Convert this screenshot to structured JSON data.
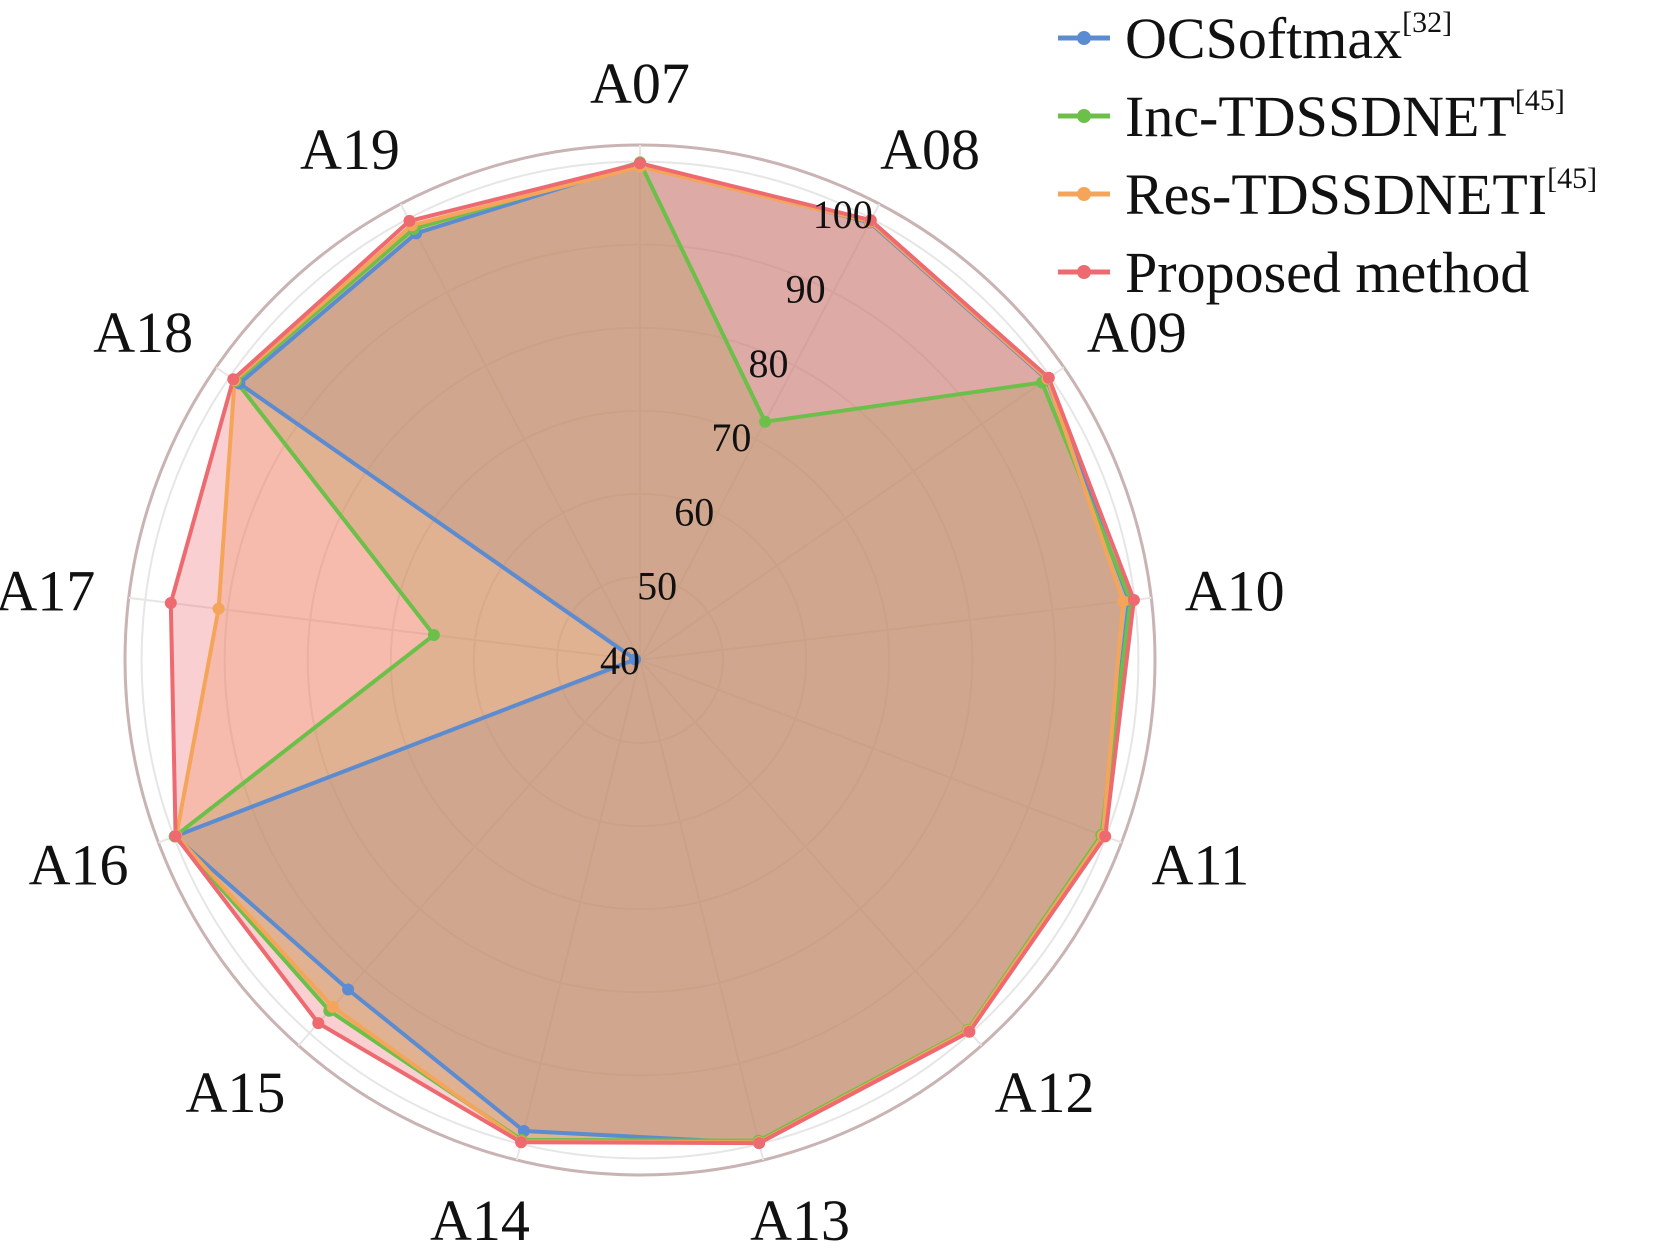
{
  "chart_data": {
    "type": "radar",
    "axes": [
      "A07",
      "A08",
      "A09",
      "A10",
      "A11",
      "A12",
      "A13",
      "A14",
      "A15",
      "A16",
      "A17",
      "A18",
      "A19"
    ],
    "rlim": [
      40,
      102
    ],
    "ticks": [
      40,
      50,
      60,
      70,
      80,
      90,
      100
    ],
    "grid": true,
    "legend_position": "top-right",
    "series": [
      {
        "name": "OCSoftmax",
        "ref": "[32]",
        "color": "#5b8bd0",
        "values": [
          99.8,
          99.5,
          99.5,
          99.3,
          99.5,
          99.6,
          99.9,
          98.4,
          93.0,
          99.9,
          40.6,
          98.6,
          98.0
        ]
      },
      {
        "name": "Inc-TDSSDNET",
        "ref": "[45]",
        "color": "#6cc04a",
        "values": [
          99.9,
          72.4,
          98.8,
          99.5,
          99.4,
          99.5,
          99.6,
          99.5,
          96.4,
          99.9,
          65.0,
          99.1,
          98.6
        ]
      },
      {
        "name": "Res-TDSSDNETI",
        "ref": "[45]",
        "color": "#f5a55a",
        "values": [
          99.4,
          99.6,
          99.6,
          98.6,
          99.6,
          99.6,
          99.8,
          99.7,
          95.8,
          99.7,
          91.1,
          99.3,
          99.1
        ]
      },
      {
        "name": "Proposed method",
        "ref": "",
        "color": "#ec6a70",
        "values": [
          99.8,
          99.8,
          99.8,
          99.9,
          99.9,
          99.8,
          99.9,
          99.8,
          98.4,
          99.8,
          96.9,
          99.5,
          99.7
        ]
      }
    ]
  }
}
